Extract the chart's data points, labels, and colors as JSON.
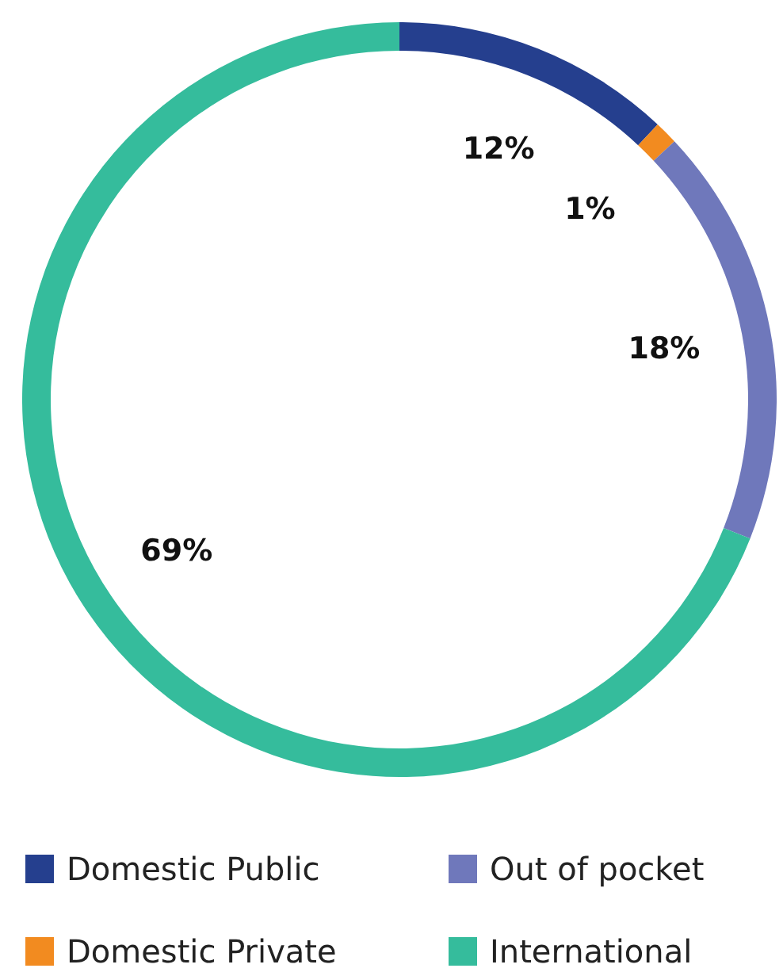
{
  "chart_data": {
    "type": "donut",
    "categories": [
      "Domestic Public",
      "Domestic Private",
      "Out of pocket",
      "International"
    ],
    "values": [
      12,
      1,
      18,
      69
    ],
    "colors": [
      "#253f8e",
      "#f28b20",
      "#6f78bb",
      "#35bc9c"
    ],
    "value_labels": [
      "12%",
      "1%",
      "18%",
      "69%"
    ],
    "legend": "bottom"
  }
}
